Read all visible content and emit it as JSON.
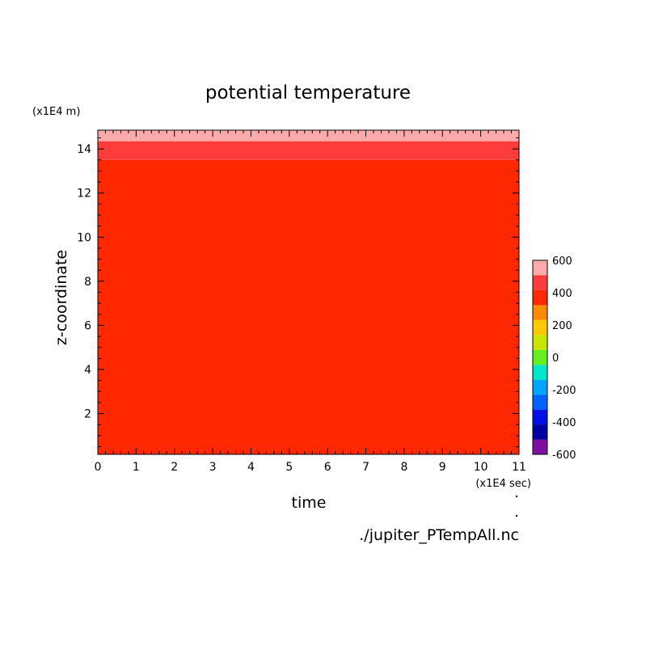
{
  "chart_data": {
    "type": "heatmap",
    "title": "potential temperature",
    "xlabel": "time",
    "ylabel": "z-coordinate",
    "x_unit": "(x1E4 sec)",
    "y_unit": "(x1E4 m)",
    "xlim": [
      0,
      11
    ],
    "ylim": [
      0.15,
      14.85
    ],
    "x_ticks": [
      "0",
      "1",
      "2",
      "3",
      "4",
      "5",
      "6",
      "7",
      "8",
      "9",
      "10",
      "11"
    ],
    "y_ticks": [
      "2",
      "4",
      "6",
      "8",
      "10",
      "12",
      "14"
    ],
    "source": "./jupiter_PTempAll.nc",
    "colorbar": {
      "min": -600,
      "max": 600,
      "labels": [
        "600",
        "400",
        "200",
        "0",
        "-200",
        "-400",
        "-600"
      ],
      "levels": [
        {
          "from": -600,
          "to": -500,
          "color": "#7f0f9f"
        },
        {
          "from": -500,
          "to": -400,
          "color": "#0000a0"
        },
        {
          "from": -400,
          "to": -300,
          "color": "#0010e6"
        },
        {
          "from": -300,
          "to": -200,
          "color": "#0063ff"
        },
        {
          "from": -200,
          "to": -100,
          "color": "#00a6ff"
        },
        {
          "from": -100,
          "to": 0,
          "color": "#00e6c8"
        },
        {
          "from": 0,
          "to": 100,
          "color": "#66ee1e"
        },
        {
          "from": 100,
          "to": 200,
          "color": "#c8e600"
        },
        {
          "from": 200,
          "to": 300,
          "color": "#ffc800"
        },
        {
          "from": 300,
          "to": 400,
          "color": "#ff8c00"
        },
        {
          "from": 400,
          "to": 500,
          "color": "#ff2800"
        },
        {
          "from": 500,
          "to": 600,
          "color": "#ff3c3c"
        },
        {
          "from": 600,
          "to": 700,
          "color": "#ffaaaa"
        }
      ]
    },
    "bands": [
      {
        "z_from": 0.15,
        "z_to": 13.5,
        "value_range": [
          400,
          500
        ],
        "color": "#ff2800"
      },
      {
        "z_from": 13.5,
        "z_to": 14.35,
        "value_range": [
          500,
          600
        ],
        "color": "#ff3c3c"
      },
      {
        "z_from": 14.35,
        "z_to": 14.85,
        "value_range": [
          600,
          700
        ],
        "color": "#ffaaaa"
      }
    ],
    "grid": false,
    "legend": "colorbar-right"
  }
}
